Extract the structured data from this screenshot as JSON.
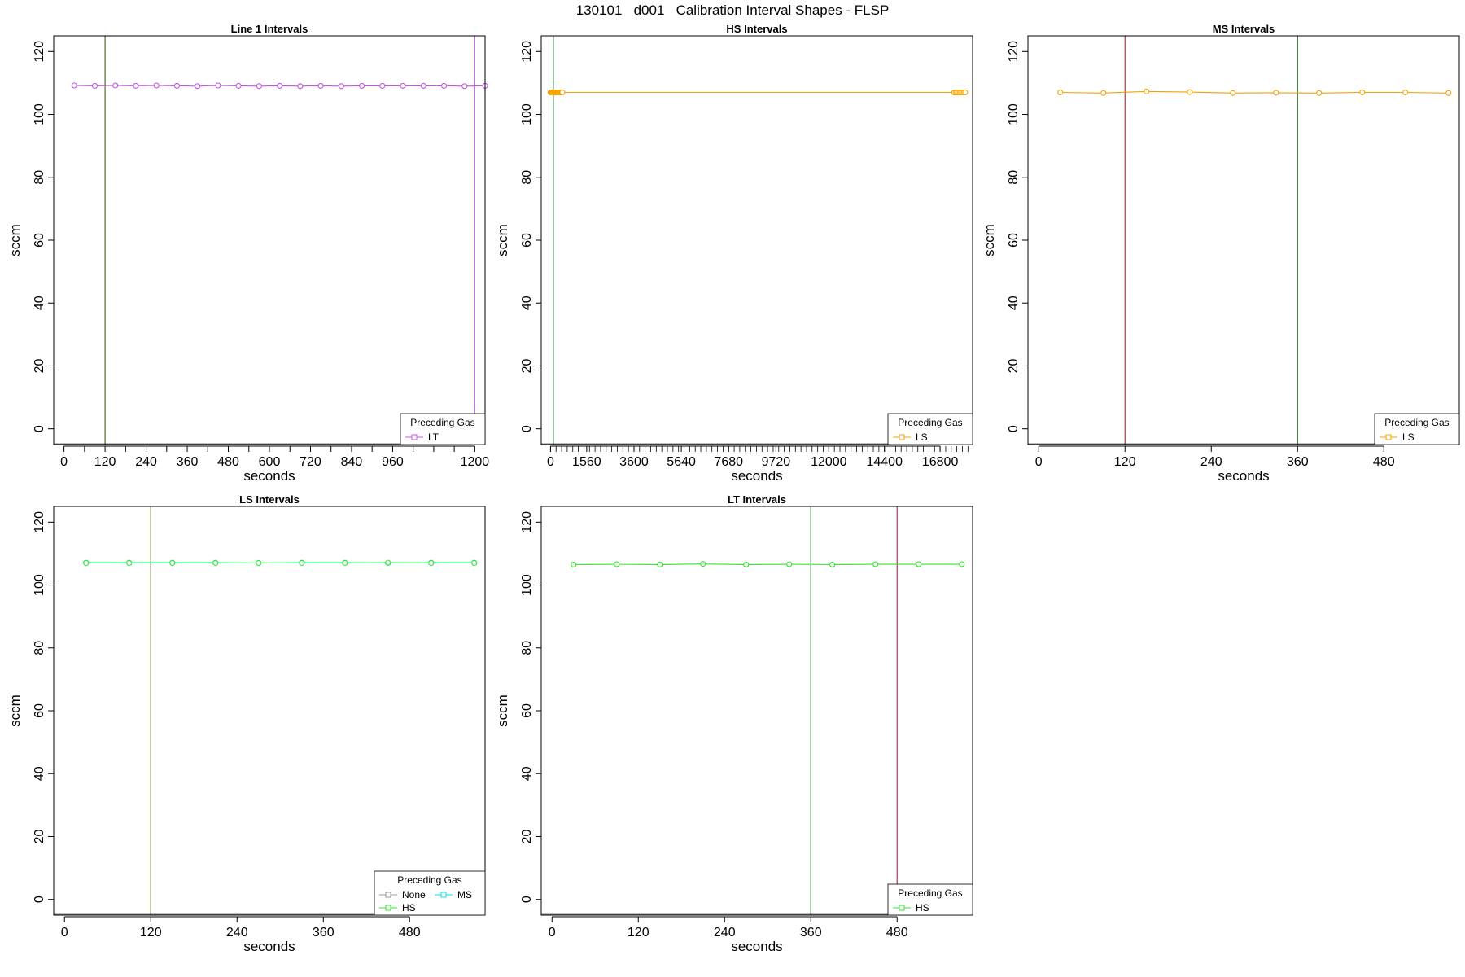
{
  "title": "130101   d001   Calibration Interval Shapes - FLSP",
  "chart_data": [
    {
      "type": "line",
      "title": "Line 1 Intervals",
      "xlabel": "seconds",
      "ylabel": "sccm",
      "xlim": [
        -30,
        1230
      ],
      "ylim": [
        -5,
        125
      ],
      "xticks": [
        0,
        60,
        120,
        180,
        240,
        300,
        360,
        420,
        480,
        540,
        600,
        660,
        720,
        780,
        840,
        900,
        960,
        1020,
        1080,
        1140,
        1200
      ],
      "xtick_labels": [
        "0",
        "",
        "120",
        "",
        "240",
        "",
        "360",
        "",
        "480",
        "",
        "600",
        "",
        "720",
        "",
        "840",
        "",
        "960",
        "",
        "",
        "",
        "1200"
      ],
      "yticks": [
        0,
        20,
        40,
        60,
        80,
        100,
        120
      ],
      "vlines": [
        {
          "x": 120,
          "color": "#556b2f"
        },
        {
          "x": 1200,
          "color": "#c46ee8"
        }
      ],
      "series": [
        {
          "name": "LT",
          "color": "#c455e0",
          "x": [
            30,
            90,
            150,
            210,
            270,
            330,
            390,
            450,
            510,
            570,
            630,
            690,
            750,
            810,
            870,
            930,
            990,
            1050,
            1110,
            1170,
            1230
          ],
          "y": [
            109.2,
            109.1,
            109.2,
            109.1,
            109.2,
            109.1,
            109.0,
            109.2,
            109.1,
            109.0,
            109.1,
            109.0,
            109.1,
            109.0,
            109.1,
            109.1,
            109.1,
            109.1,
            109.1,
            109.0,
            109.1
          ]
        }
      ],
      "legend": {
        "title": "Preceding Gas",
        "position": "bottom-right",
        "columns": 1,
        "entries": [
          "LT"
        ]
      }
    },
    {
      "type": "line",
      "title": "HS Intervals",
      "xlabel": "seconds",
      "ylabel": "sccm",
      "xlim": [
        -400,
        18200
      ],
      "ylim": [
        -5,
        125
      ],
      "xticks": [
        0,
        1560,
        3600,
        5640,
        7680,
        9720,
        12000,
        14400,
        16800
      ],
      "xtick_labels": [
        "0",
        "1560",
        "3600",
        "5640",
        "7680",
        "9720",
        "12000",
        "14400",
        "16800"
      ],
      "minor_xtick_step": 240,
      "yticks": [
        0,
        20,
        40,
        60,
        80,
        100,
        120
      ],
      "vlines": [
        {
          "x": 120,
          "color": "#2f6e2f"
        }
      ],
      "series": [
        {
          "name": "LS",
          "color": "#f5a300",
          "x": [
            0,
            30,
            60,
            90,
            120,
            150,
            180,
            210,
            240,
            270,
            300,
            330,
            360,
            390,
            420,
            450,
            480,
            510,
            17400,
            17460,
            17520,
            17580,
            17640,
            17700,
            17760,
            17820,
            17880
          ],
          "y": [
            107,
            107,
            107,
            107,
            107,
            107,
            107,
            107,
            107,
            107,
            107,
            107,
            107,
            107,
            107,
            107,
            107,
            107,
            107,
            107,
            107,
            107,
            107,
            107,
            107,
            107,
            107
          ]
        }
      ],
      "legend": {
        "title": "Preceding Gas",
        "position": "bottom-right",
        "columns": 1,
        "entries": [
          "LS"
        ]
      }
    },
    {
      "type": "line",
      "title": "MS Intervals",
      "xlabel": "seconds",
      "ylabel": "sccm",
      "xlim": [
        -15,
        585
      ],
      "ylim": [
        -5,
        125
      ],
      "xticks": [
        0,
        120,
        240,
        360,
        480
      ],
      "xtick_labels": [
        "0",
        "120",
        "240",
        "360",
        "480"
      ],
      "yticks": [
        0,
        20,
        40,
        60,
        80,
        100,
        120
      ],
      "vlines": [
        {
          "x": 120,
          "color": "#b03a3a"
        },
        {
          "x": 360,
          "color": "#2f6e2f"
        }
      ],
      "series": [
        {
          "name": "LS",
          "color": "#f5a300",
          "x": [
            30,
            90,
            150,
            210,
            270,
            330,
            390,
            450,
            510,
            570
          ],
          "y": [
            107.0,
            106.8,
            107.3,
            107.1,
            106.8,
            106.9,
            106.8,
            107.0,
            107.0,
            106.8
          ]
        }
      ],
      "legend": {
        "title": "Preceding Gas",
        "position": "bottom-right",
        "columns": 1,
        "entries": [
          "LS"
        ]
      }
    },
    {
      "type": "line",
      "title": "LS Intervals",
      "xlabel": "seconds",
      "ylabel": "sccm",
      "xlim": [
        -15,
        585
      ],
      "ylim": [
        -5,
        125
      ],
      "xticks": [
        0,
        120,
        240,
        360,
        480
      ],
      "xtick_labels": [
        "0",
        "120",
        "240",
        "360",
        "480"
      ],
      "yticks": [
        0,
        20,
        40,
        60,
        80,
        100,
        120
      ],
      "vlines": [
        {
          "x": 120,
          "color": "#556b2f"
        }
      ],
      "series": [
        {
          "name": "MS",
          "color": "#00e5e5",
          "x": [
            30,
            90,
            150,
            210,
            270,
            330,
            390,
            450,
            510,
            570
          ],
          "y": [
            107.1,
            107.1,
            107.1,
            107.1,
            107.0,
            107.1,
            107.1,
            107.0,
            107.1,
            107.1
          ]
        },
        {
          "name": "HS",
          "color": "#33e633",
          "x": [
            30,
            90,
            150,
            210,
            270,
            330,
            390,
            450,
            510,
            570
          ],
          "y": [
            107.0,
            107.0,
            107.0,
            107.0,
            107.0,
            107.0,
            107.0,
            107.1,
            107.0,
            107.0
          ]
        },
        {
          "name": "None",
          "color": "#999999",
          "x": [],
          "y": []
        }
      ],
      "legend": {
        "title": "Preceding Gas",
        "position": "bottom-right",
        "columns": 2,
        "entries": [
          "None",
          "MS",
          "HS"
        ]
      }
    },
    {
      "type": "line",
      "title": "LT Intervals",
      "xlabel": "seconds",
      "ylabel": "sccm",
      "xlim": [
        -15,
        585
      ],
      "ylim": [
        -5,
        125
      ],
      "xticks": [
        0,
        120,
        240,
        360,
        480
      ],
      "xtick_labels": [
        "0",
        "120",
        "240",
        "360",
        "480"
      ],
      "yticks": [
        0,
        20,
        40,
        60,
        80,
        100,
        120
      ],
      "vlines": [
        {
          "x": 360,
          "color": "#2f6e2f"
        },
        {
          "x": 480,
          "color": "#b03a5a"
        }
      ],
      "series": [
        {
          "name": "HS",
          "color": "#33e633",
          "x": [
            30,
            90,
            150,
            210,
            270,
            330,
            390,
            450,
            510,
            570
          ],
          "y": [
            106.5,
            106.6,
            106.5,
            106.7,
            106.5,
            106.6,
            106.5,
            106.6,
            106.6,
            106.6
          ]
        }
      ],
      "legend": {
        "title": "Preceding Gas",
        "position": "bottom-right",
        "columns": 1,
        "entries": [
          "HS"
        ]
      }
    }
  ]
}
